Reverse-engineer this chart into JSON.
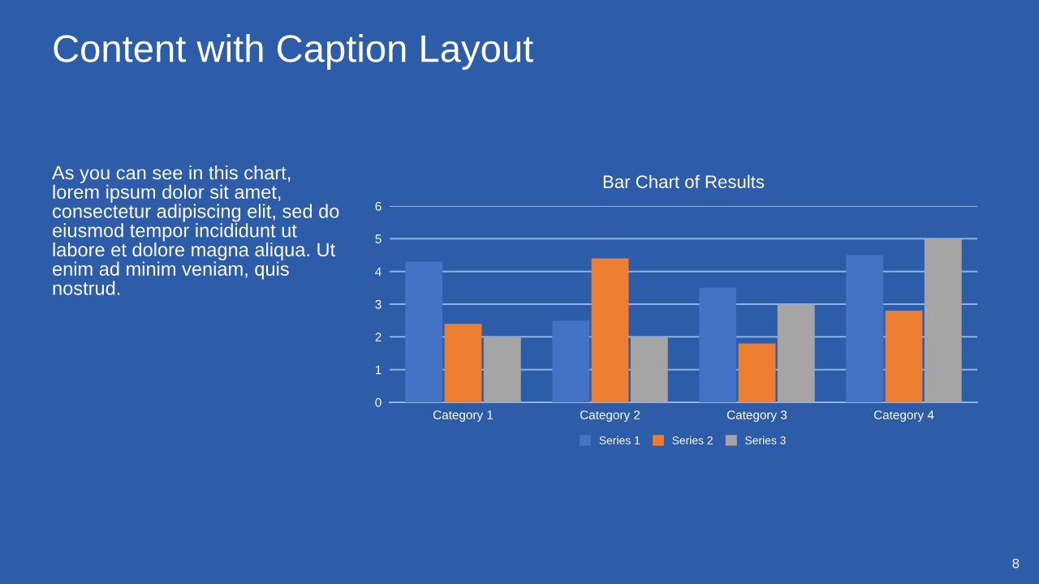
{
  "chart_data": {
    "type": "bar",
    "title": "Bar Chart of Results",
    "categories": [
      "Category 1",
      "Category 2",
      "Category 3",
      "Category 4"
    ],
    "series": [
      {
        "name": "Series 1",
        "color": "#4472c4",
        "values": [
          4.3,
          2.5,
          3.5,
          4.5
        ]
      },
      {
        "name": "Series 2",
        "color": "#ed7d31",
        "values": [
          2.4,
          4.4,
          1.8,
          2.8
        ]
      },
      {
        "name": "Series 3",
        "color": "#a5a5a5",
        "values": [
          2,
          2,
          3,
          5
        ]
      }
    ],
    "ylim": [
      0,
      6
    ],
    "yticks": [
      0,
      1,
      2,
      3,
      4,
      5,
      6
    ],
    "grid": "y",
    "legend": "bottom",
    "annotations": [
      "Content with Caption Layout",
      "As you can see in this chart,\nlorem ipsum dolor sit amet,\nconsectetur adipiscing elit, sed do\neiusmod tempor incididunt ut\nlabore et dolore magna aliqua. Ut\nenim ad minim veniam, quis\nnostrud.",
      "8"
    ]
  }
}
